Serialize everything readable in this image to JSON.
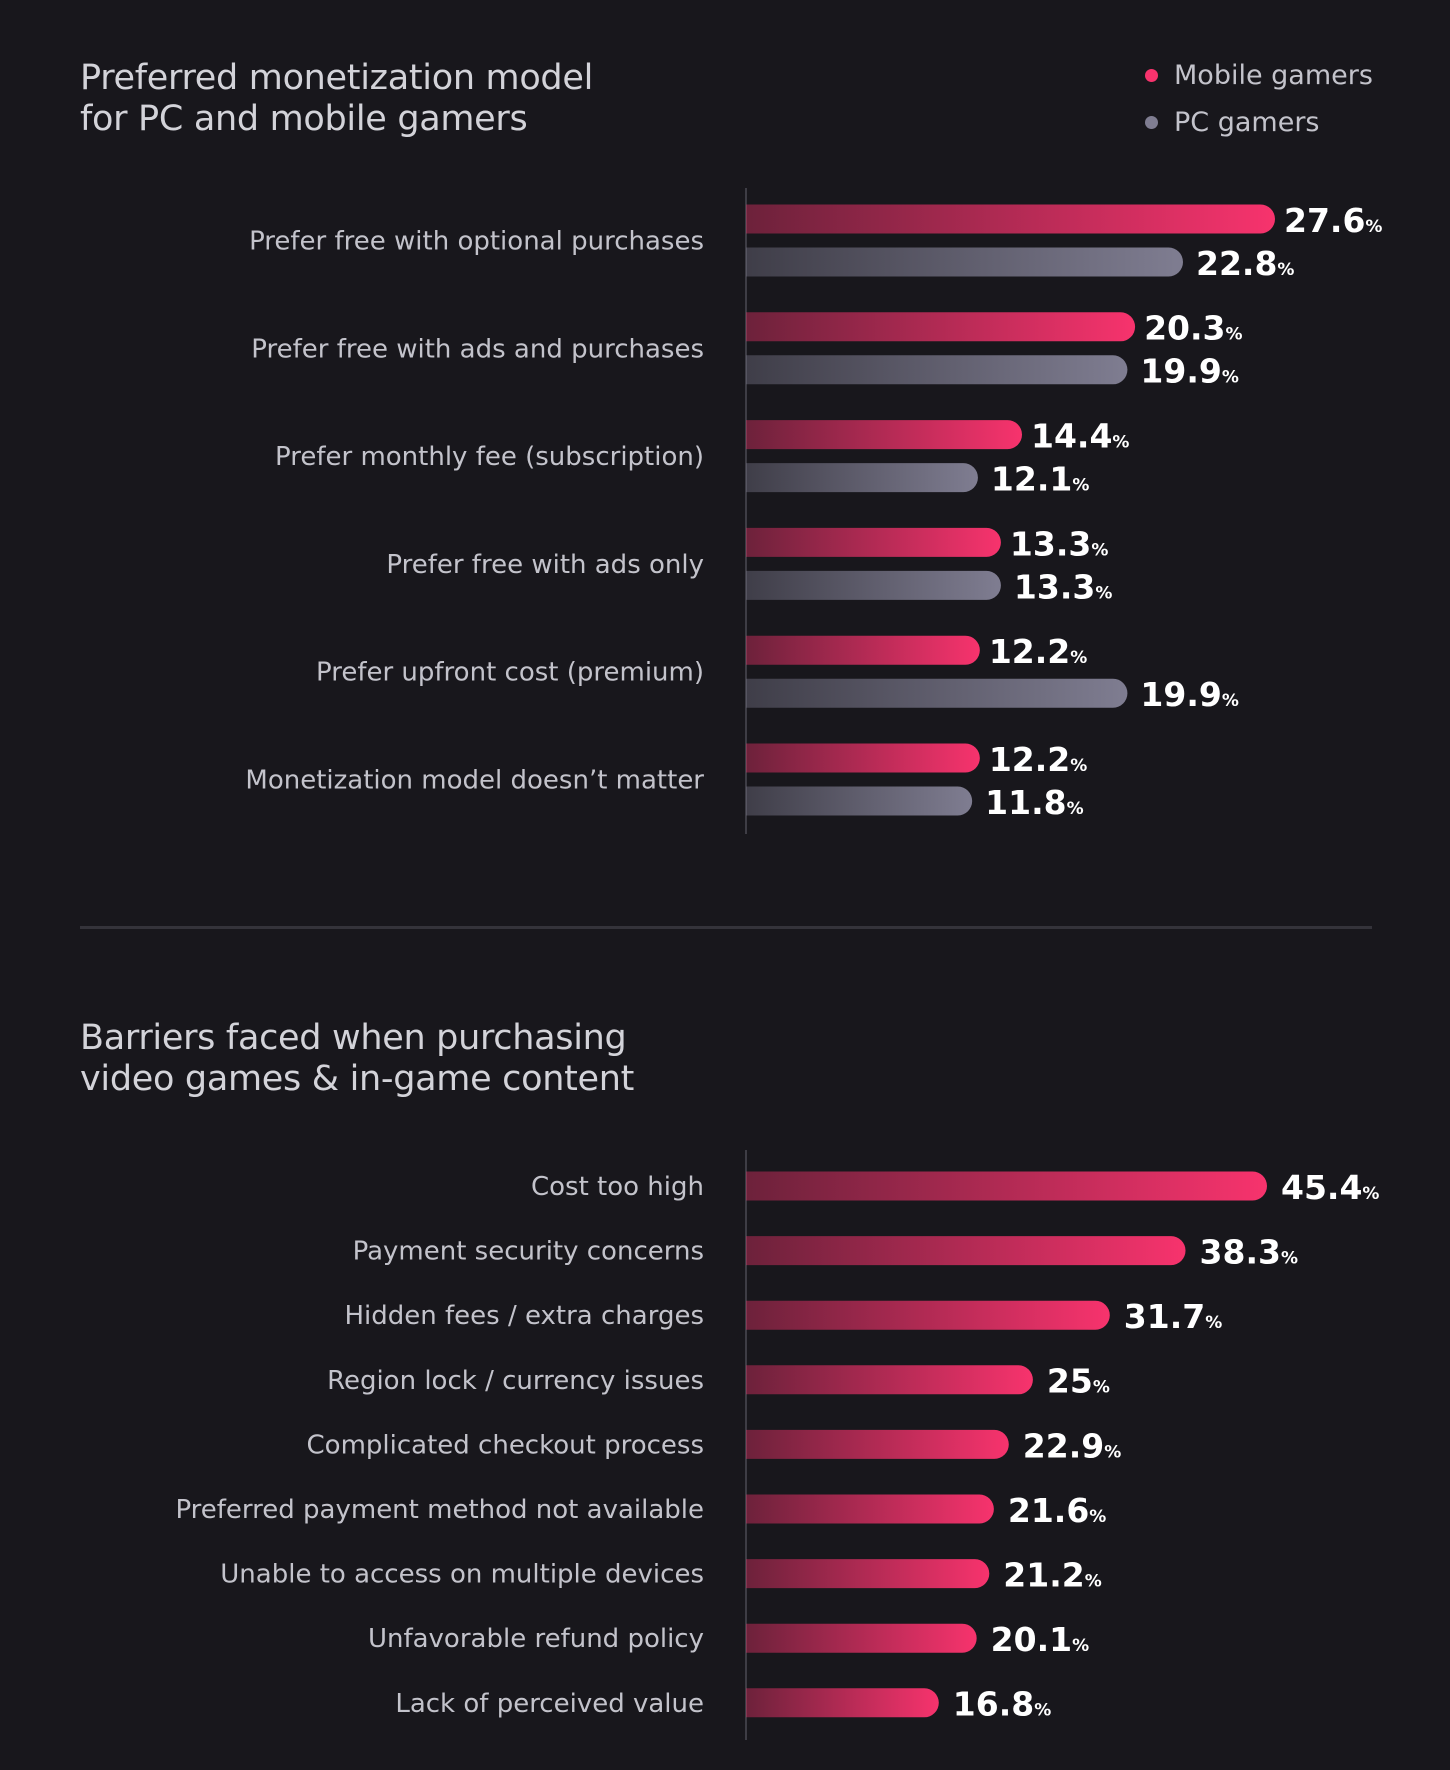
{
  "colors": {
    "mobile": "#f7336d",
    "pc": "#7f7d91",
    "background": "#18171c"
  },
  "chart_data": [
    {
      "type": "bar",
      "orientation": "horizontal",
      "title": "Preferred monetization model\nfor PC and mobile gamers",
      "legend_position": "top-right",
      "unit_suffix": "%",
      "categories": [
        "Prefer free with optional purchases",
        "Prefer free with ads and purchases",
        "Prefer monthly fee (subscription)",
        "Prefer free with ads only",
        "Prefer upfront cost (premium)",
        "Monetization model doesn’t matter"
      ],
      "series": [
        {
          "name": "Mobile gamers",
          "values": [
            27.6,
            20.3,
            14.4,
            13.3,
            12.2,
            12.2
          ]
        },
        {
          "name": "PC gamers",
          "values": [
            22.8,
            19.9,
            12.1,
            13.3,
            19.9,
            11.8
          ]
        }
      ],
      "xlim": [
        0,
        27.6
      ],
      "grid": false
    },
    {
      "type": "bar",
      "orientation": "horizontal",
      "title": "Barriers faced when purchasing\nvideo games & in-game content",
      "unit_suffix": "%",
      "categories": [
        "Cost too high",
        "Payment security concerns",
        "Hidden fees / extra charges",
        "Region lock / currency issues",
        "Complicated checkout process",
        "Preferred payment method not available",
        "Unable to access on multiple devices",
        "Unfavorable refund policy",
        "Lack of perceived value"
      ],
      "values": [
        45.4,
        38.3,
        31.7,
        25,
        22.9,
        21.6,
        21.2,
        20.1,
        16.8
      ],
      "xlim": [
        0,
        45.4
      ],
      "grid": false
    }
  ]
}
